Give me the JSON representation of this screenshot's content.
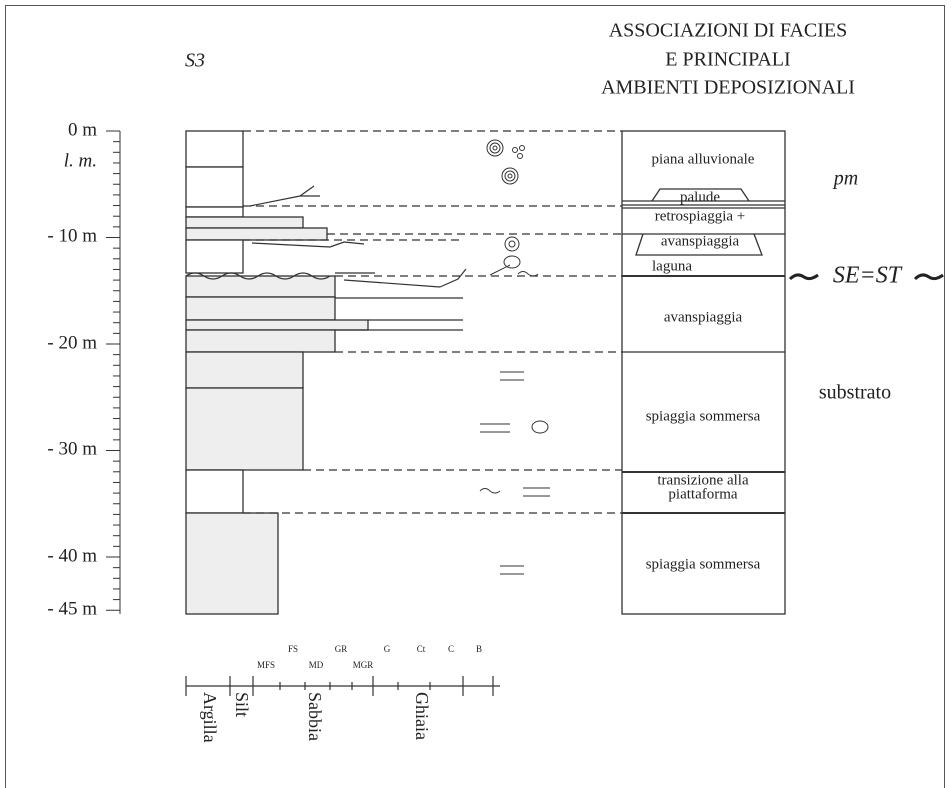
{
  "header": {
    "lines": [
      "ASSOCIAZIONI DI FACIES",
      "E PRINCIPALI",
      "AMBIENTI DEPOSIZIONALI"
    ]
  },
  "log_name": "S3",
  "depth_labels": [
    "0 m",
    "l. m.",
    "- 10 m",
    "- 20 m",
    "- 30 m",
    "- 40 m",
    "- 45 m"
  ],
  "facies": [
    "piana alluvionale",
    "palude",
    "retrospiaggia +",
    "avanspiaggia",
    "laguna",
    "avanspiaggia",
    "spiaggia sommersa",
    "transizione alla",
    "piattaforma",
    "spiaggia sommersa"
  ],
  "annotations": [
    "pm",
    "SE=ST",
    "substrato"
  ],
  "grain_sizes": [
    "MFS",
    "FS",
    "MD",
    "GR",
    "MGR",
    "G",
    "Ct",
    "C",
    "B"
  ],
  "grain_classes": [
    "Argilla",
    "Silt",
    "Sabbia",
    "Ghiaia"
  ]
}
